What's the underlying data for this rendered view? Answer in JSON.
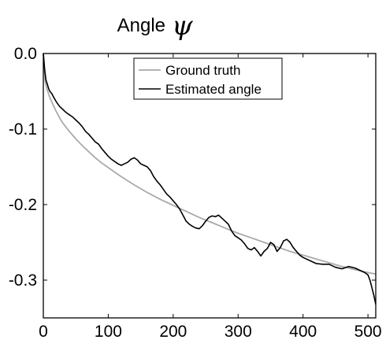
{
  "chart_data": {
    "type": "line",
    "title": "Angle",
    "title_symbol": "ψ",
    "xlabel": "",
    "ylabel": "",
    "xlim": [
      0,
      512
    ],
    "ylim": [
      -0.35,
      0.0
    ],
    "x_ticks": [
      0,
      100,
      200,
      300,
      400,
      500
    ],
    "x_tick_labels": [
      "0",
      "100",
      "200",
      "300",
      "400",
      "500"
    ],
    "y_ticks": [
      0.0,
      -0.1,
      -0.2,
      -0.3
    ],
    "y_tick_labels": [
      "0.0",
      "-0.1",
      "-0.2",
      "-0.3"
    ],
    "grid": false,
    "legend_position": "top-center",
    "series": [
      {
        "name": "Ground truth",
        "color": "#aaaaaa",
        "x": [
          0,
          3,
          6,
          10,
          15,
          20,
          25,
          30,
          40,
          50,
          60,
          70,
          80,
          90,
          100,
          120,
          140,
          160,
          180,
          200,
          220,
          240,
          260,
          280,
          300,
          320,
          340,
          360,
          380,
          400,
          420,
          440,
          460,
          480,
          500,
          512
        ],
        "y": [
          0.0,
          -0.038,
          -0.048,
          -0.058,
          -0.068,
          -0.077,
          -0.085,
          -0.092,
          -0.103,
          -0.113,
          -0.122,
          -0.13,
          -0.138,
          -0.145,
          -0.151,
          -0.163,
          -0.174,
          -0.184,
          -0.193,
          -0.201,
          -0.209,
          -0.217,
          -0.224,
          -0.231,
          -0.238,
          -0.244,
          -0.25,
          -0.256,
          -0.262,
          -0.267,
          -0.272,
          -0.277,
          -0.282,
          -0.286,
          -0.29,
          -0.292
        ]
      },
      {
        "name": "Estimated angle",
        "color": "#000000",
        "x": [
          0,
          2,
          4,
          6,
          8,
          10,
          13,
          16,
          20,
          25,
          30,
          35,
          40,
          45,
          50,
          55,
          60,
          65,
          70,
          75,
          80,
          85,
          90,
          95,
          100,
          105,
          110,
          115,
          120,
          125,
          130,
          135,
          140,
          145,
          150,
          155,
          160,
          165,
          170,
          175,
          180,
          185,
          190,
          195,
          200,
          205,
          210,
          215,
          220,
          225,
          230,
          235,
          240,
          245,
          250,
          255,
          260,
          265,
          270,
          275,
          280,
          285,
          290,
          295,
          300,
          305,
          310,
          315,
          320,
          325,
          330,
          335,
          340,
          345,
          350,
          355,
          360,
          365,
          370,
          375,
          380,
          385,
          390,
          395,
          400,
          410,
          420,
          430,
          440,
          450,
          460,
          470,
          480,
          490,
          495,
          500,
          503,
          506,
          509,
          512
        ],
        "y": [
          0.0,
          -0.02,
          -0.035,
          -0.04,
          -0.046,
          -0.05,
          -0.053,
          -0.058,
          -0.064,
          -0.07,
          -0.074,
          -0.078,
          -0.081,
          -0.084,
          -0.088,
          -0.092,
          -0.097,
          -0.103,
          -0.107,
          -0.112,
          -0.117,
          -0.12,
          -0.126,
          -0.131,
          -0.136,
          -0.14,
          -0.143,
          -0.146,
          -0.148,
          -0.146,
          -0.144,
          -0.14,
          -0.138,
          -0.141,
          -0.146,
          -0.148,
          -0.15,
          -0.155,
          -0.163,
          -0.169,
          -0.174,
          -0.18,
          -0.186,
          -0.19,
          -0.195,
          -0.2,
          -0.206,
          -0.214,
          -0.222,
          -0.226,
          -0.229,
          -0.231,
          -0.232,
          -0.228,
          -0.222,
          -0.217,
          -0.215,
          -0.216,
          -0.214,
          -0.218,
          -0.222,
          -0.226,
          -0.235,
          -0.241,
          -0.244,
          -0.247,
          -0.252,
          -0.258,
          -0.26,
          -0.257,
          -0.262,
          -0.268,
          -0.262,
          -0.258,
          -0.25,
          -0.253,
          -0.262,
          -0.257,
          -0.248,
          -0.246,
          -0.25,
          -0.257,
          -0.262,
          -0.267,
          -0.27,
          -0.274,
          -0.278,
          -0.279,
          -0.279,
          -0.283,
          -0.285,
          -0.282,
          -0.284,
          -0.288,
          -0.29,
          -0.293,
          -0.3,
          -0.31,
          -0.32,
          -0.332
        ]
      }
    ]
  }
}
